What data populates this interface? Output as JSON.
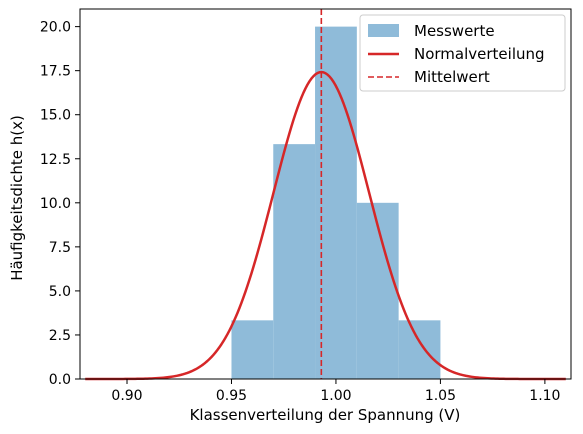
{
  "chart_data": {
    "type": "bar",
    "title": "",
    "xlabel": "Klassenverteilung der Spannung (V)",
    "ylabel": "Häufigkeitsdichte h(x)",
    "xlim": [
      0.8775,
      1.1125
    ],
    "ylim": [
      0,
      21
    ],
    "x_ticks": [
      0.9,
      0.95,
      1.0,
      1.05,
      1.1
    ],
    "x_tick_labels": [
      "0.90",
      "0.95",
      "1.00",
      "1.05",
      "1.10"
    ],
    "y_ticks": [
      0.0,
      2.5,
      5.0,
      7.5,
      10.0,
      12.5,
      15.0,
      17.5,
      20.0
    ],
    "y_tick_labels": [
      "0.0",
      "2.5",
      "5.0",
      "7.5",
      "10.0",
      "12.5",
      "15.0",
      "17.5",
      "20.0"
    ],
    "grid": false,
    "legend_position": "top-right",
    "series": [
      {
        "name": "Messwerte",
        "kind": "histogram",
        "color": "#8fbbd9",
        "bins": [
          {
            "x0": 0.95,
            "x1": 0.97,
            "value": 3.33
          },
          {
            "x0": 0.97,
            "x1": 0.99,
            "value": 13.33
          },
          {
            "x0": 0.99,
            "x1": 1.01,
            "value": 20.0
          },
          {
            "x0": 1.01,
            "x1": 1.03,
            "value": 10.0
          },
          {
            "x0": 1.03,
            "x1": 1.05,
            "value": 3.33
          }
        ]
      },
      {
        "name": "Normalverteilung",
        "kind": "line",
        "color": "#d62728",
        "mean": 0.993,
        "std": 0.0229,
        "x_range": [
          0.88,
          1.11
        ]
      },
      {
        "name": "Mittelwert",
        "kind": "vline",
        "color": "#d62728",
        "x": 0.993
      }
    ]
  }
}
